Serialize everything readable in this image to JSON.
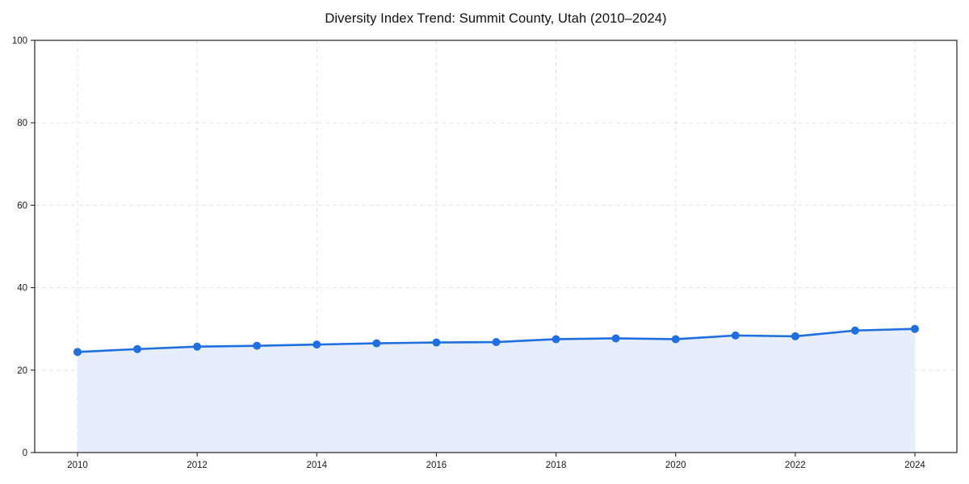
{
  "page": {
    "background_color": "#ffffff"
  },
  "chart_data": {
    "type": "line",
    "title": "Diversity Index Trend: Summit County, Utah (2010–2024)",
    "x": [
      2010,
      2011,
      2012,
      2013,
      2014,
      2015,
      2016,
      2017,
      2018,
      2019,
      2020,
      2021,
      2022,
      2023,
      2024
    ],
    "series": [
      {
        "name": "Diversity Index",
        "values": [
          24.4,
          25.1,
          25.7,
          25.9,
          26.2,
          26.5,
          26.7,
          26.8,
          27.5,
          27.7,
          27.5,
          28.4,
          28.2,
          29.6,
          30.0
        ]
      }
    ],
    "xlabel": "",
    "ylabel": "",
    "ylim": [
      0,
      100
    ],
    "xticks": [
      2010,
      2012,
      2014,
      2016,
      2018,
      2020,
      2022,
      2024
    ],
    "yticks": [
      0,
      20,
      40,
      60,
      80,
      100
    ],
    "grid": true,
    "grid_style": "dashed",
    "legend_position": "none",
    "area_fill": true,
    "marker": "circle",
    "colors": {
      "line": "#1f6fe0",
      "marker": "#1f6fe0",
      "area_fill": "#e6eefb",
      "axis": "#262626",
      "grid": "#e0e0e0",
      "tick_label": "#1a1a1a",
      "title": "#111111"
    }
  }
}
